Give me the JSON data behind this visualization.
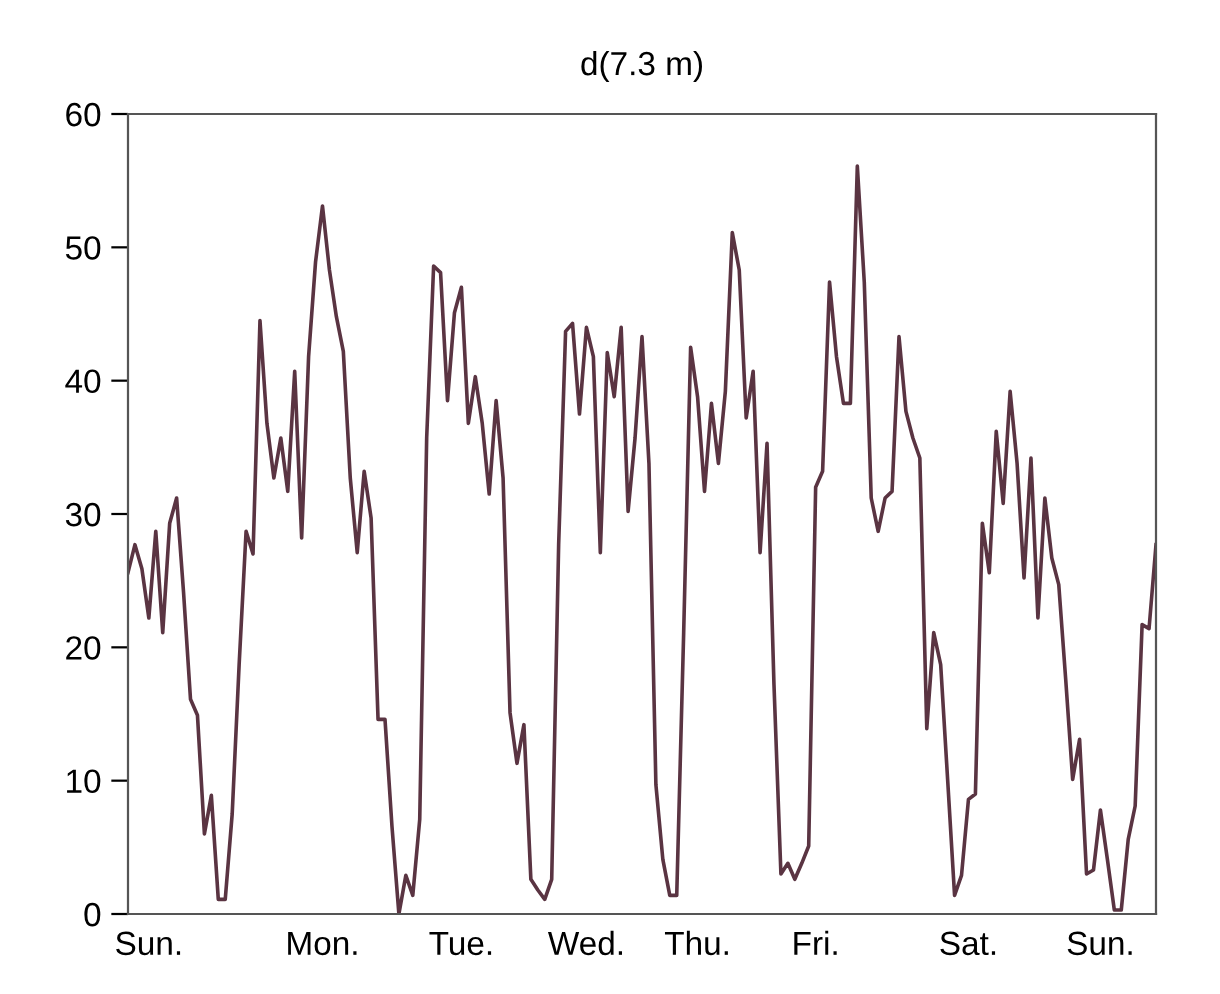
{
  "chart_data": {
    "type": "line",
    "title": "d(7.3 m)",
    "ylim": [
      0,
      60
    ],
    "yticks": [
      0,
      10,
      20,
      30,
      40,
      50,
      60
    ],
    "categories": [
      null,
      null,
      null,
      "Sun.",
      null,
      null,
      null,
      null,
      null,
      null,
      null,
      null,
      null,
      null,
      null,
      null,
      null,
      null,
      null,
      null,
      null,
      null,
      null,
      null,
      null,
      null,
      null,
      null,
      "Mon.",
      null,
      null,
      null,
      null,
      null,
      null,
      null,
      null,
      null,
      null,
      null,
      null,
      null,
      null,
      null,
      null,
      null,
      null,
      null,
      "Tue.",
      null,
      null,
      null,
      null,
      null,
      null,
      null,
      null,
      null,
      null,
      null,
      null,
      null,
      null,
      null,
      null,
      null,
      "Wed.",
      null,
      null,
      null,
      null,
      null,
      null,
      null,
      null,
      null,
      null,
      null,
      null,
      null,
      null,
      null,
      "Thu.",
      null,
      null,
      null,
      null,
      null,
      null,
      null,
      null,
      null,
      null,
      null,
      null,
      null,
      null,
      null,
      null,
      "Fri.",
      null,
      null,
      null,
      null,
      null,
      null,
      null,
      null,
      null,
      null,
      null,
      null,
      null,
      null,
      null,
      null,
      null,
      null,
      null,
      null,
      null,
      "Sat.",
      null,
      null,
      null,
      null,
      null,
      null,
      null,
      null,
      null,
      null,
      null,
      null,
      null,
      null,
      null,
      null,
      null,
      null,
      "Sun.",
      null,
      null,
      null,
      null,
      null,
      null,
      null,
      null
    ],
    "grid": false,
    "legend": false,
    "marker": "none",
    "line_style": "solid",
    "series": [
      {
        "color": "#5a3442",
        "values": [
          25.6,
          27.7,
          25.9,
          22.2,
          28.7,
          21.1,
          29.3,
          31.2,
          24.1,
          16.1,
          14.9,
          6.0,
          8.9,
          1.1,
          1.1,
          7.5,
          18.7,
          28.7,
          27.0,
          44.5,
          36.8,
          32.7,
          35.7,
          31.7,
          40.7,
          28.2,
          41.8,
          48.9,
          53.1,
          48.3,
          44.8,
          42.2,
          32.7,
          27.1,
          33.2,
          29.7,
          14.6,
          14.6,
          6.6,
          0,
          2.9,
          1.4,
          7.1,
          35.7,
          48.6,
          48.1,
          38.5,
          45.1,
          47.0,
          36.8,
          40.3,
          36.8,
          31.5,
          38.5,
          32.7,
          15.1,
          11.3,
          14.2,
          2.6,
          1.8,
          1.1,
          2.6,
          27.7,
          43.7,
          44.3,
          37.5,
          44.0,
          41.8,
          27.1,
          42.1,
          38.8,
          44.0,
          30.2,
          35.7,
          43.3,
          33.8,
          9.7,
          4.1,
          1.4,
          1.4,
          21.1,
          42.5,
          38.8,
          31.7,
          38.3,
          33.8,
          39.2,
          51.1,
          48.3,
          37.2,
          40.7,
          27.1,
          35.3,
          17.2,
          3.0,
          3.8,
          2.6,
          3.8,
          5.1,
          32.0,
          33.2,
          47.4,
          41.8,
          38.3,
          38.3,
          56.1,
          47.4,
          31.2,
          28.7,
          31.2,
          31.7,
          43.3,
          37.7,
          35.7,
          34.2,
          13.9,
          21.1,
          18.7,
          10.1,
          1.4,
          2.9,
          8.6,
          9.0,
          29.3,
          25.6,
          36.2,
          30.8,
          39.2,
          33.8,
          25.2,
          34.2,
          22.2,
          31.2,
          26.7,
          24.7,
          17.6,
          10.1,
          13.1,
          3.0,
          3.3,
          7.8,
          4.1,
          0.3,
          0.3,
          5.6,
          8.1,
          21.7,
          21.4,
          27.7
        ]
      }
    ]
  }
}
